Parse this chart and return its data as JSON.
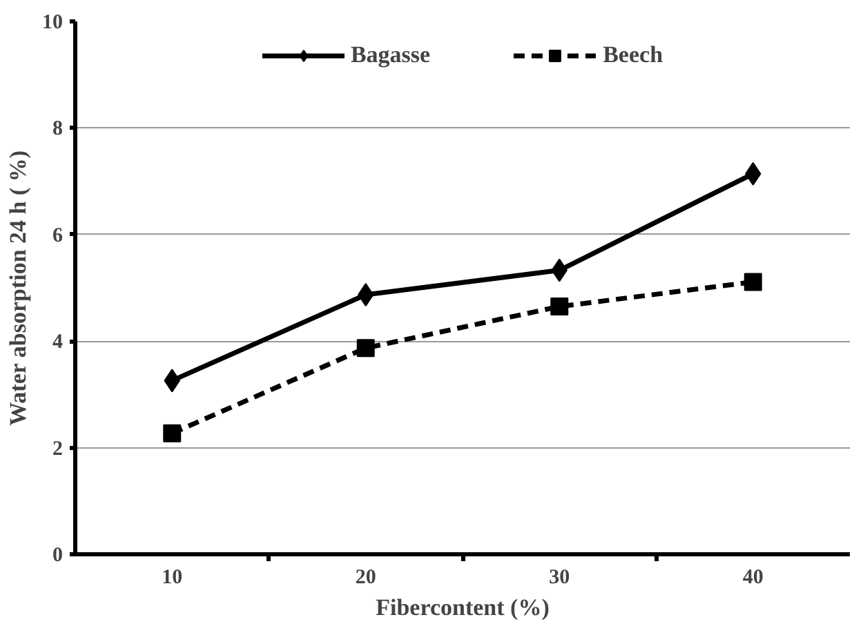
{
  "chart_data": {
    "type": "line",
    "xlabel": "Fibercontent (%)",
    "ylabel": "Water absorption 24 h ( %)",
    "categories": [
      "10",
      "20",
      "30",
      "40"
    ],
    "series": [
      {
        "name": "Bagasse",
        "color": "#000000",
        "values": [
          3.26,
          4.87,
          5.33,
          7.14
        ],
        "marker": "diamond",
        "line_style": "solid"
      },
      {
        "name": "Beech",
        "color": "#000000",
        "values": [
          2.27,
          3.87,
          4.65,
          5.11
        ],
        "marker": "square",
        "line_style": "dashed"
      }
    ],
    "ylim": [
      0,
      10
    ],
    "yticks": [
      0,
      2,
      4,
      6,
      8,
      10
    ],
    "grid": "y",
    "legend": "top"
  }
}
